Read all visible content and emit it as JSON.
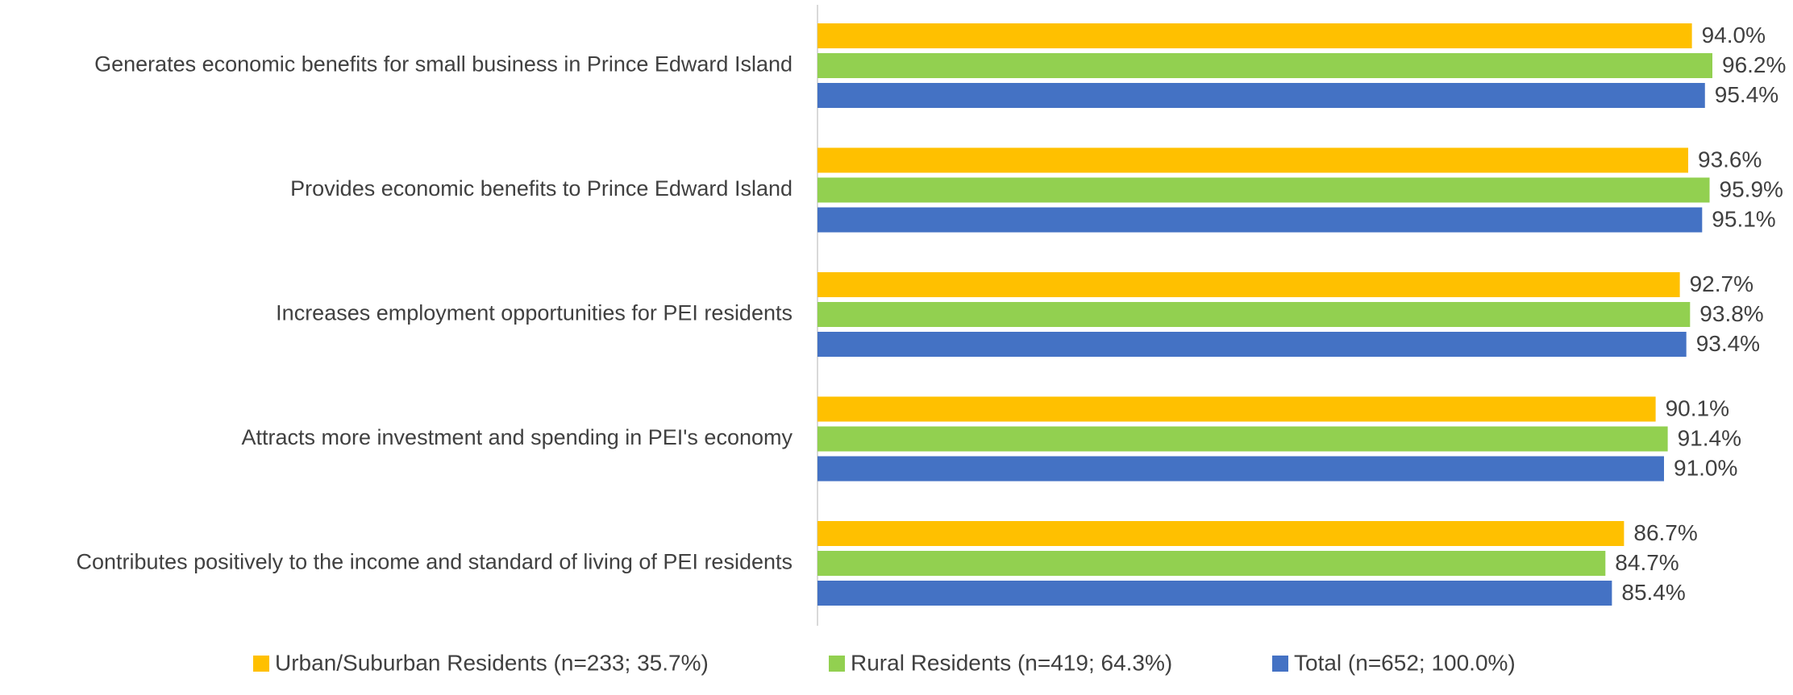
{
  "chart_data": {
    "type": "bar",
    "orientation": "horizontal",
    "title": "",
    "xlabel": "",
    "ylabel": "",
    "xlim": [
      0,
      100
    ],
    "grid": false,
    "legend_position": "bottom",
    "categories": [
      "Generates economic benefits for small business in Prince Edward Island",
      "Provides economic benefits to Prince Edward Island",
      "Increases employment opportunities for PEI residents",
      "Attracts more investment and spending in PEI's economy",
      "Contributes positively to the income and standard of living of PEI residents"
    ],
    "series": [
      {
        "name": "Urban/Suburban Residents (n=233; 35.7%)",
        "color": "#FFC000",
        "values": [
          94.0,
          93.6,
          92.7,
          90.1,
          86.7
        ],
        "labels": [
          "94.0%",
          "93.6%",
          "92.7%",
          "90.1%",
          "86.7%"
        ]
      },
      {
        "name": "Rural Residents (n=419; 64.3%)",
        "color": "#92D050",
        "values": [
          96.2,
          95.9,
          93.8,
          91.4,
          84.7
        ],
        "labels": [
          "96.2%",
          "95.9%",
          "93.8%",
          "91.4%",
          "84.7%"
        ]
      },
      {
        "name": "Total (n=652; 100.0%)",
        "color": "#4472C4",
        "values": [
          95.4,
          95.1,
          93.4,
          91.0,
          85.4
        ],
        "labels": [
          "95.4%",
          "95.1%",
          "93.4%",
          "91.0%",
          "85.4%"
        ]
      }
    ],
    "axis_color": "#D9D9D9"
  }
}
